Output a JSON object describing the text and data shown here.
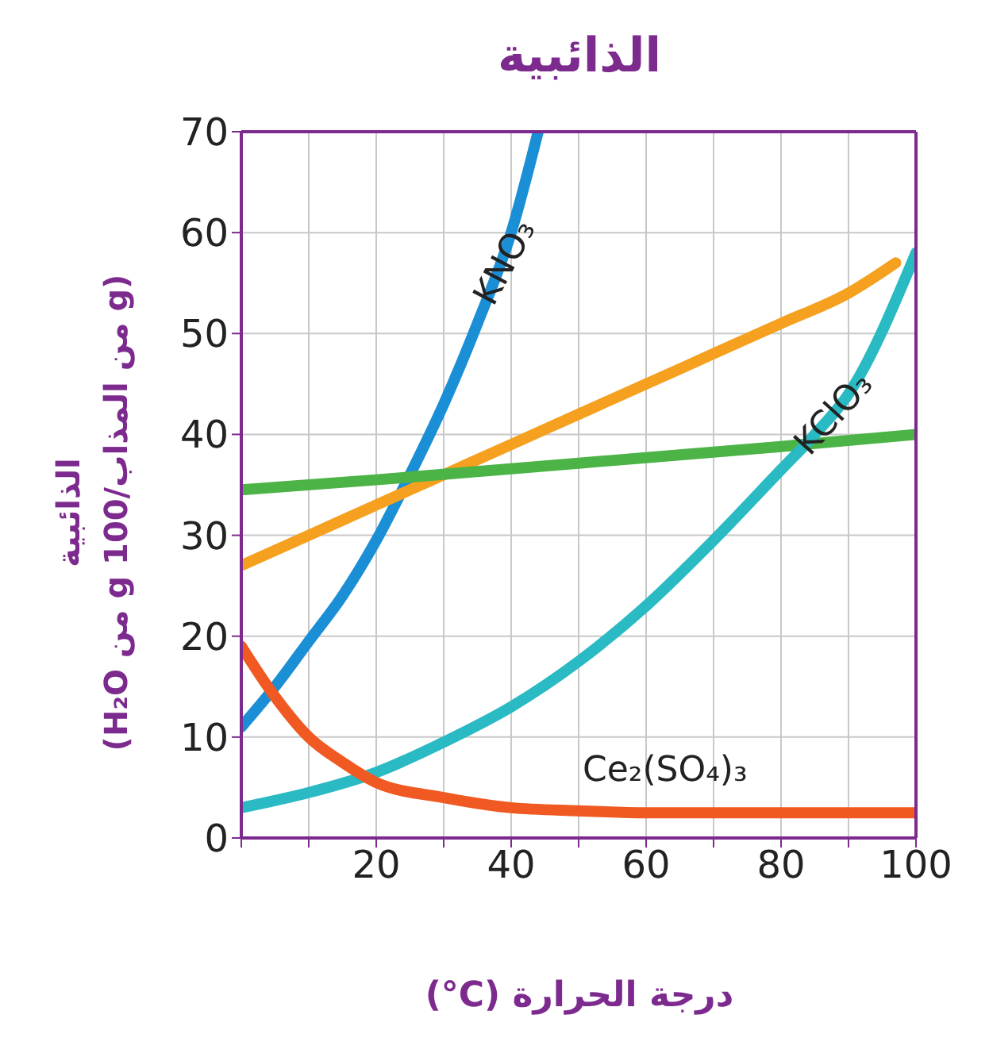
{
  "chart_data": {
    "type": "line",
    "title": "الذائبية",
    "xlabel": "(°C) درجة الحرارة",
    "ylabel": "الذائبية\n(g من المذاب/100 g من H₂O)",
    "xlim": [
      0,
      100
    ],
    "ylim": [
      0,
      70
    ],
    "xticks": [
      {
        "value": 0,
        "label": null
      },
      {
        "value": 10,
        "label": null
      },
      20,
      {
        "value": 30,
        "label": null
      },
      40,
      {
        "value": 50,
        "label": null
      },
      60,
      {
        "value": 70,
        "label": null
      },
      80,
      {
        "value": 90,
        "label": null
      },
      100
    ],
    "yticks": [
      0,
      10,
      20,
      30,
      40,
      50,
      60,
      70
    ],
    "grid": true,
    "legend": false,
    "marker": "none",
    "line_style": "solid",
    "series": [
      {
        "name": "KNO₃",
        "color": "#1b8fd6",
        "x": [
          0,
          5,
          10,
          15,
          20,
          25,
          30,
          35,
          40,
          44
        ],
        "values": [
          11,
          15,
          19.5,
          24,
          29.5,
          36,
          43,
          51,
          60,
          70
        ]
      },
      {
        "color": "#f5a01f",
        "x": [
          0,
          10,
          20,
          30,
          40,
          50,
          60,
          70,
          80,
          90,
          97
        ],
        "values": [
          27,
          30,
          33,
          36,
          39,
          42,
          45,
          48,
          51,
          54,
          57
        ]
      },
      {
        "color": "#4cb447",
        "x": [
          0,
          20,
          40,
          60,
          80,
          100
        ],
        "values": [
          34.5,
          35.5,
          36.6,
          37.7,
          38.8,
          40
        ]
      },
      {
        "name": "KClO₃",
        "color": "#2abac3",
        "x": [
          0,
          10,
          20,
          30,
          40,
          50,
          60,
          70,
          80,
          85,
          90,
          100
        ],
        "values": [
          3,
          4.5,
          6.5,
          9.5,
          13,
          17.5,
          23,
          29.5,
          36.5,
          40,
          44,
          58
        ]
      },
      {
        "name": "Ce₂(SO₄)₃",
        "color": "#f05a22",
        "x": [
          0,
          5,
          10,
          15,
          20,
          30,
          40,
          50,
          60,
          80,
          100
        ],
        "values": [
          19,
          14,
          10,
          7.5,
          5.5,
          4,
          3,
          2.7,
          2.5,
          2.5,
          2.5
        ]
      }
    ]
  }
}
